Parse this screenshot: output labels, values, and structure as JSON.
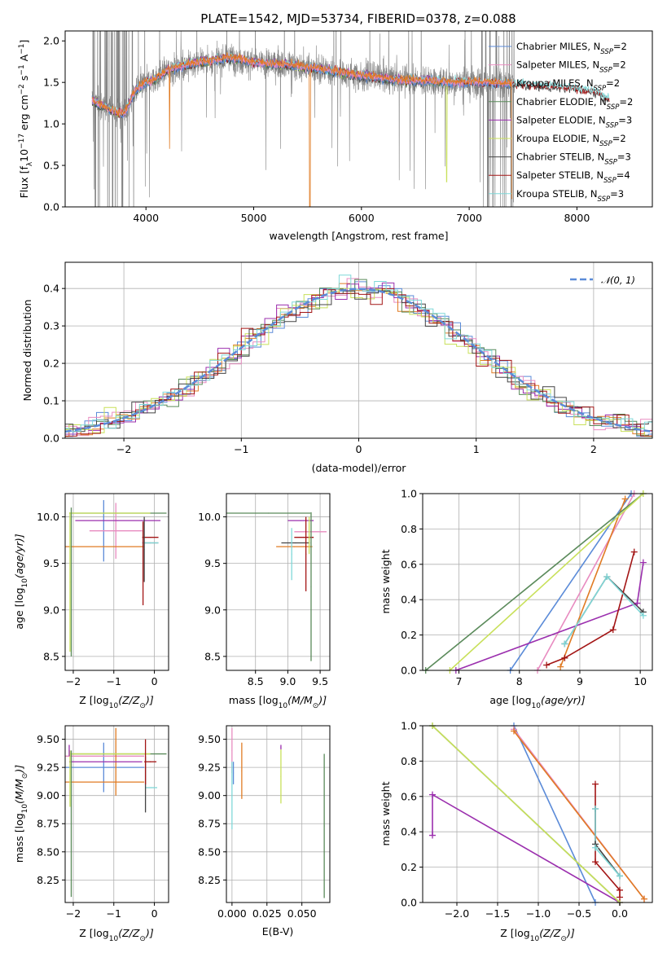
{
  "figure_title": "PLATE=1542, MJD=53734, FIBERID=0378, z=0.088",
  "colors": {
    "Chabrier MILES": "#5b8bd8",
    "Salpeter MILES": "#e88bc0",
    "Kroupa MILES": "#e07b23",
    "Chabrier ELODIE": "#5a8a5a",
    "Salpeter ELODIE": "#9b2fae",
    "Kroupa ELODIE": "#c8e05a",
    "Chabrier STELIB": "#444444",
    "Salpeter STELIB": "#a31515",
    "Kroupa STELIB": "#7fd8d8",
    "data": "#808080",
    "normal": "#5b8bd8"
  },
  "chart_data": [
    {
      "id": "spectrum",
      "type": "line",
      "xlabel": "wavelength [Angstrom, rest frame]",
      "ylabel_parts": [
        "Flux [f",
        "λ",
        "10",
        "−17",
        " erg cm",
        "−2",
        " s",
        "−1",
        " A",
        "−1",
        "]"
      ],
      "xlim": [
        3250,
        8700
      ],
      "ylim": [
        0,
        2.12
      ],
      "xticks": [
        4000,
        5000,
        6000,
        7000,
        8000
      ],
      "yticks": [
        0.0,
        0.5,
        1.0,
        1.5,
        2.0
      ],
      "ytick_labels": [
        "0.0",
        "0.5",
        "1.0",
        "1.5",
        "2.0"
      ],
      "grid": false,
      "legend_position": "upper right",
      "legend": [
        {
          "label": "Chabrier MILES, N",
          "sub": "SSP",
          "suffix": "=2",
          "color_key": "Chabrier MILES"
        },
        {
          "label": "Salpeter MILES, N",
          "sub": "SSP",
          "suffix": "=2",
          "color_key": "Salpeter MILES"
        },
        {
          "label": "Kroupa MILES, N",
          "sub": "SSP",
          "suffix": "=2",
          "color_key": "Kroupa MILES"
        },
        {
          "label": "Chabrier ELODIE, N",
          "sub": "SSP",
          "suffix": "=2",
          "color_key": "Chabrier ELODIE"
        },
        {
          "label": "Salpeter ELODIE, N",
          "sub": "SSP",
          "suffix": "=3",
          "color_key": "Salpeter ELODIE"
        },
        {
          "label": "Kroupa ELODIE, N",
          "sub": "SSP",
          "suffix": "=2",
          "color_key": "Kroupa ELODIE"
        },
        {
          "label": "Chabrier STELIB, N",
          "sub": "SSP",
          "suffix": "=3",
          "color_key": "Chabrier STELIB"
        },
        {
          "label": "Salpeter STELIB, N",
          "sub": "SSP",
          "suffix": "=4",
          "color_key": "Salpeter STELIB"
        },
        {
          "label": "Kroupa STELIB, N",
          "sub": "SSP",
          "suffix": "=3",
          "color_key": "Kroupa STELIB"
        }
      ],
      "continuum": {
        "x": [
          3500,
          3700,
          3800,
          3900,
          4000,
          4100,
          4200,
          4400,
          4600,
          4800,
          5000,
          5200,
          5400,
          5600,
          5800,
          6000,
          6200,
          6400,
          6600,
          6800,
          7000,
          7200,
          7400,
          7600,
          7800,
          8000,
          8200,
          8300
        ],
        "y": [
          1.28,
          1.15,
          1.12,
          1.4,
          1.5,
          1.55,
          1.65,
          1.72,
          1.76,
          1.8,
          1.74,
          1.72,
          1.7,
          1.66,
          1.62,
          1.58,
          1.55,
          1.52,
          1.52,
          1.5,
          1.5,
          1.5,
          1.48,
          1.47,
          1.45,
          1.43,
          1.37,
          1.3
        ]
      }
    },
    {
      "id": "residual-histogram",
      "type": "histogram",
      "xlabel": "(data-model)/error",
      "ylabel": "Normed distribution",
      "xlim": [
        -2.5,
        2.5
      ],
      "ylim": [
        0,
        0.47
      ],
      "xticks": [
        -2,
        -1,
        0,
        1,
        2
      ],
      "xtick_labels": [
        "−2",
        "−1",
        "0",
        "1",
        "2"
      ],
      "yticks": [
        0.0,
        0.1,
        0.2,
        0.3,
        0.4
      ],
      "ytick_labels": [
        "0.0",
        "0.1",
        "0.2",
        "0.3",
        "0.4"
      ],
      "grid": true,
      "bin_width": 0.1,
      "legend_position": "upper right",
      "legend": [
        {
          "label": "𝒩(0, 1)",
          "color_key": "normal",
          "style": "dashed"
        }
      ]
    },
    {
      "id": "age-vs-Z",
      "type": "errorbar",
      "xlabel_parts": [
        "Z [log",
        "10",
        "(Z/Z",
        "⊙",
        ")]"
      ],
      "ylabel_parts": [
        "age  [log",
        "10",
        "(age/yr)]"
      ],
      "xlim": [
        -2.2,
        0.35
      ],
      "ylim": [
        8.35,
        10.25
      ],
      "xticks": [
        -2,
        -1,
        0
      ],
      "xtick_labels": [
        "−2",
        "−1",
        "0"
      ],
      "yticks": [
        8.5,
        9.0,
        9.5,
        10.0
      ],
      "ytick_labels": [
        "8.5",
        "9.0",
        "9.5",
        "10.0"
      ],
      "grid": true,
      "points": [
        {
          "c": "Chabrier MILES",
          "x": -1.25,
          "xe": 0,
          "y": 9.85,
          "ye": 0.33
        },
        {
          "c": "Salpeter MILES",
          "x": -0.95,
          "xe": 0.65,
          "y": 9.85,
          "ye": 0.3
        },
        {
          "c": "Kroupa MILES",
          "x": -1.25,
          "xe": 1.0,
          "y": 9.68,
          "ye": 0
        },
        {
          "c": "Chabrier ELODIE",
          "x": -0.9,
          "xe": 1.2,
          "y": 10.04,
          "ye": 0
        },
        {
          "c": "Salpeter ELODIE",
          "x": -0.9,
          "xe": 1.05,
          "y": 9.96,
          "ye": 0
        },
        {
          "c": "Kroupa ELODIE",
          "x": -1.1,
          "xe": 1.0,
          "y": 10.04,
          "ye": 0
        },
        {
          "c": "Chabrier STELIB",
          "x": -0.1,
          "xe": 0.2,
          "y": 9.72,
          "ye": 0
        },
        {
          "c": "Salpeter STELIB",
          "x": -0.1,
          "xe": 0.2,
          "y": 9.78,
          "ye": 0
        },
        {
          "c": "Kroupa STELIB",
          "x": -0.1,
          "xe": 0.2,
          "y": 9.72,
          "ye": 0
        },
        {
          "c": "Chabrier ELODIE",
          "x": -2.05,
          "xe": 0,
          "y": 9.3,
          "ye": 0.8
        },
        {
          "c": "Kroupa ELODIE",
          "x": -2.08,
          "xe": 0,
          "y": 9.3,
          "ye": 0.75
        },
        {
          "c": "Salpeter STELIB",
          "x": -0.28,
          "xe": 0,
          "y": 9.5,
          "ye": 0.45
        },
        {
          "c": "Chabrier STELIB",
          "x": -0.25,
          "xe": 0,
          "y": 9.65,
          "ye": 0.35
        }
      ]
    },
    {
      "id": "age-vs-mass",
      "type": "errorbar",
      "xlabel_parts": [
        "mass [log",
        "10",
        "(M/M",
        "⊙",
        ")]"
      ],
      "xlim": [
        8.05,
        9.65
      ],
      "ylim": [
        8.35,
        10.25
      ],
      "xticks": [
        8.5,
        9.0,
        9.5
      ],
      "xtick_labels": [
        "8.5",
        "9.0",
        "9.5"
      ],
      "yticks": [
        8.5,
        9.0,
        9.5,
        10.0
      ],
      "ytick_labels": [
        "8.5",
        "9.0",
        "9.5",
        "10.0"
      ],
      "grid": true,
      "points": [
        {
          "c": "Chabrier ELODIE",
          "x": 8.7,
          "xe": 0.65,
          "y": 10.04,
          "ye": 0
        },
        {
          "c": "Salpeter MILES",
          "x": 9.35,
          "xe": 0.25,
          "y": 9.84,
          "ye": 0
        },
        {
          "c": "Salpeter ELODIE",
          "x": 9.2,
          "xe": 0.2,
          "y": 9.96,
          "ye": 0
        },
        {
          "c": "Kroupa MILES",
          "x": 9.1,
          "xe": 0.28,
          "y": 9.68,
          "ye": 0
        },
        {
          "c": "Salpeter STELIB",
          "x": 9.25,
          "xe": 0.15,
          "y": 9.78,
          "ye": 0
        },
        {
          "c": "Chabrier STELIB",
          "x": 9.12,
          "xe": 0.22,
          "y": 9.72,
          "ye": 0
        },
        {
          "c": "Kroupa STELIB",
          "x": 9.06,
          "xe": 0.0,
          "y": 9.6,
          "ye": 0.28
        },
        {
          "c": "Salpeter STELIB",
          "x": 9.28,
          "xe": 0,
          "y": 9.6,
          "ye": 0.4
        },
        {
          "c": "Chabrier ELODIE",
          "x": 9.36,
          "xe": 0,
          "y": 9.25,
          "ye": 0.8
        },
        {
          "c": "Kroupa ELODIE",
          "x": 9.33,
          "xe": 0,
          "y": 9.8,
          "ye": 0.2
        }
      ]
    },
    {
      "id": "mass-weight-vs-age",
      "type": "line",
      "xlabel_parts": [
        "age  [log",
        "10",
        "(age/yr)]"
      ],
      "ylabel": "mass weight",
      "xlim": [
        6.4,
        10.2
      ],
      "ylim": [
        0,
        1.0
      ],
      "xticks": [
        7,
        8,
        9,
        10
      ],
      "xtick_labels": [
        "7",
        "8",
        "9",
        "10"
      ],
      "yticks": [
        0.0,
        0.2,
        0.4,
        0.6,
        0.8,
        1.0
      ],
      "ytick_labels": [
        "0.0",
        "0.2",
        "0.4",
        "0.6",
        "0.8",
        "1.0"
      ],
      "grid": true,
      "series": [
        {
          "c": "Chabrier MILES",
          "x": [
            7.85,
            9.85
          ],
          "y": [
            0.0,
            1.0
          ]
        },
        {
          "c": "Salpeter MILES",
          "x": [
            8.3,
            9.9
          ],
          "y": [
            0.0,
            1.0
          ]
        },
        {
          "c": "Kroupa MILES",
          "x": [
            8.68,
            9.75
          ],
          "y": [
            0.02,
            0.97
          ]
        },
        {
          "c": "Chabrier ELODIE",
          "x": [
            6.45,
            10.05
          ],
          "y": [
            0.0,
            1.0
          ]
        },
        {
          "c": "Salpeter ELODIE",
          "x": [
            6.95,
            9.95,
            10.05
          ],
          "y": [
            0.0,
            0.38,
            0.61
          ]
        },
        {
          "c": "Kroupa ELODIE",
          "x": [
            6.85,
            10.05
          ],
          "y": [
            0.0,
            1.0
          ]
        },
        {
          "c": "Chabrier STELIB",
          "x": [
            8.75,
            9.45,
            10.05
          ],
          "y": [
            0.15,
            0.53,
            0.33
          ]
        },
        {
          "c": "Salpeter STELIB",
          "x": [
            8.45,
            8.75,
            9.55,
            9.9
          ],
          "y": [
            0.03,
            0.07,
            0.23,
            0.67
          ]
        },
        {
          "c": "Kroupa STELIB",
          "x": [
            8.75,
            9.45,
            10.05
          ],
          "y": [
            0.15,
            0.53,
            0.31
          ]
        }
      ]
    },
    {
      "id": "mass-vs-Z",
      "type": "errorbar",
      "xlabel_parts": [
        "Z [log",
        "10",
        "(Z/Z",
        "⊙",
        ")]"
      ],
      "ylabel_parts": [
        "mass [log",
        "10",
        "(M/M",
        "⊙",
        ")]"
      ],
      "xlim": [
        -2.2,
        0.35
      ],
      "ylim": [
        8.05,
        9.62
      ],
      "xticks": [
        -2,
        -1,
        0
      ],
      "xtick_labels": [
        "−2",
        "−1",
        "0"
      ],
      "yticks": [
        8.25,
        8.5,
        8.75,
        9.0,
        9.25,
        9.5
      ],
      "ytick_labels": [
        "8.25",
        "8.50",
        "8.75",
        "9.00",
        "9.25",
        "9.50"
      ],
      "grid": true,
      "points": [
        {
          "c": "Chabrier MILES",
          "x": -1.25,
          "xe": 1.0,
          "y": 9.25,
          "ye": 0.22
        },
        {
          "c": "Salpeter MILES",
          "x": -1.25,
          "xe": 1.0,
          "y": 9.35,
          "ye": 0
        },
        {
          "c": "Kroupa MILES",
          "x": -1.25,
          "xe": 1.0,
          "y": 9.12,
          "ye": 0
        },
        {
          "c": "Kroupa MILES",
          "x": -0.95,
          "xe": 0,
          "y": 9.3,
          "ye": 0.3
        },
        {
          "c": "Chabrier ELODIE",
          "x": -0.9,
          "xe": 1.2,
          "y": 9.37,
          "ye": 0
        },
        {
          "c": "Salpeter ELODIE",
          "x": -1.2,
          "xe": 0.9,
          "y": 9.3,
          "ye": 0
        },
        {
          "c": "Kroupa ELODIE",
          "x": -1.1,
          "xe": 1.0,
          "y": 9.37,
          "ye": 0
        },
        {
          "c": "Salpeter STELIB",
          "x": -0.1,
          "xe": 0.15,
          "y": 9.3,
          "ye": 0
        },
        {
          "c": "Kroupa STELIB",
          "x": -0.08,
          "xe": 0.15,
          "y": 9.07,
          "ye": 0
        },
        {
          "c": "Chabrier STELIB",
          "x": -0.22,
          "xe": 0,
          "y": 9.1,
          "ye": 0.25
        },
        {
          "c": "Salpeter STELIB",
          "x": -0.22,
          "xe": 0,
          "y": 9.3,
          "ye": 0.2
        },
        {
          "c": "Chabrier ELODIE",
          "x": -2.05,
          "xe": 0,
          "y": 8.75,
          "ye": 0.65
        },
        {
          "c": "Kroupa ELODIE",
          "x": -2.08,
          "xe": 0,
          "y": 9.15,
          "ye": 0.25
        },
        {
          "c": "Salpeter ELODIE",
          "x": -2.1,
          "xe": 0,
          "y": 9.4,
          "ye": 0.05
        }
      ]
    },
    {
      "id": "mass-vs-ebv",
      "type": "errorbar",
      "xlabel": "E(B-V)",
      "xlim": [
        -0.004,
        0.07
      ],
      "ylim": [
        8.05,
        9.62
      ],
      "xticks": [
        0.0,
        0.025,
        0.05
      ],
      "xtick_labels": [
        "0.000",
        "0.025",
        "0.050"
      ],
      "yticks": [
        8.25,
        8.5,
        8.75,
        9.0,
        9.25,
        9.5
      ],
      "ytick_labels": [
        "8.25",
        "8.50",
        "8.75",
        "9.00",
        "9.25",
        "9.50"
      ],
      "grid": true,
      "points": [
        {
          "c": "Salpeter MILES",
          "x": 0.0,
          "xe": 0,
          "y": 9.4,
          "ye": 0.2
        },
        {
          "c": "Kroupa STELIB",
          "x": 0.0,
          "xe": 0,
          "y": 9.0,
          "ye": 0.3
        },
        {
          "c": "Chabrier MILES",
          "x": 0.001,
          "xe": 0,
          "y": 9.2,
          "ye": 0.1
        },
        {
          "c": "Kroupa MILES",
          "x": 0.007,
          "xe": 0,
          "y": 9.22,
          "ye": 0.25
        },
        {
          "c": "Kroupa ELODIE",
          "x": 0.035,
          "xe": 0,
          "y": 9.17,
          "ye": 0.24
        },
        {
          "c": "Salpeter ELODIE",
          "x": 0.035,
          "xe": 0,
          "y": 9.43,
          "ye": 0.02
        },
        {
          "c": "Chabrier ELODIE",
          "x": 0.066,
          "xe": 0,
          "y": 8.73,
          "ye": 0.64
        }
      ]
    },
    {
      "id": "mass-weight-vs-Z",
      "type": "line",
      "xlabel_parts": [
        "Z [log",
        "10",
        "(Z/Z",
        "⊙",
        ")]"
      ],
      "ylabel": "mass weight",
      "xlim": [
        -2.42,
        0.4
      ],
      "ylim": [
        0,
        1.0
      ],
      "xticks": [
        -2.0,
        -1.5,
        -1.0,
        -0.5,
        0.0
      ],
      "xtick_labels": [
        "−2.0",
        "−1.5",
        "−1.0",
        "−0.5",
        "0.0"
      ],
      "yticks": [
        0.0,
        0.2,
        0.4,
        0.6,
        0.8,
        1.0
      ],
      "ytick_labels": [
        "0.0",
        "0.2",
        "0.4",
        "0.6",
        "0.8",
        "1.0"
      ],
      "grid": true,
      "series": [
        {
          "c": "Chabrier MILES",
          "x": [
            -1.3,
            -0.3
          ],
          "y": [
            1.0,
            0.0
          ]
        },
        {
          "c": "Salpeter MILES",
          "x": [
            -1.3,
            0.3
          ],
          "y": [
            0.98,
            0.02
          ]
        },
        {
          "c": "Kroupa MILES",
          "x": [
            -1.3,
            0.3
          ],
          "y": [
            0.97,
            0.02
          ]
        },
        {
          "c": "Chabrier ELODIE",
          "x": [
            -2.3,
            0.0
          ],
          "y": [
            1.0,
            0.0
          ]
        },
        {
          "c": "Salpeter ELODIE",
          "x": [
            -2.3,
            -2.3,
            0.0
          ],
          "y": [
            0.38,
            0.61,
            0.0
          ]
        },
        {
          "c": "Kroupa ELODIE",
          "x": [
            -2.3,
            0.0
          ],
          "y": [
            1.0,
            0.0
          ]
        },
        {
          "c": "Chabrier STELIB",
          "x": [
            -0.3,
            -0.3,
            0.0
          ],
          "y": [
            0.53,
            0.33,
            0.15
          ]
        },
        {
          "c": "Salpeter STELIB",
          "x": [
            -0.3,
            -0.3,
            0.0,
            0.0
          ],
          "y": [
            0.67,
            0.23,
            0.07,
            0.03
          ]
        },
        {
          "c": "Kroupa STELIB",
          "x": [
            -0.3,
            -0.3,
            0.0
          ],
          "y": [
            0.53,
            0.31,
            0.15
          ]
        }
      ]
    }
  ]
}
